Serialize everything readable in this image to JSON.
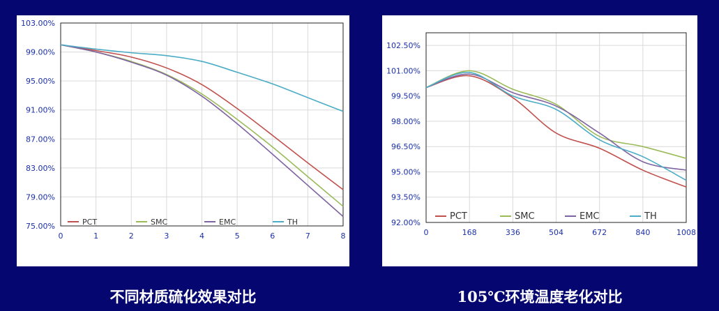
{
  "captions": {
    "left": "不同材质硫化效果对比",
    "right": "105℃环境温度老化对比"
  },
  "colors": {
    "background": "#060670",
    "PCT": "#C0504D",
    "SMC": "#9BBB59",
    "EMC": "#8064A2",
    "TH": "#4BACC6",
    "axis_text": "#1a2fa8"
  },
  "chart_data": [
    {
      "type": "line",
      "title": "",
      "xlabel": "",
      "ylabel": "",
      "x": [
        0,
        1,
        2,
        3,
        4,
        5,
        6,
        7,
        8
      ],
      "x_tick_labels": [
        "0",
        "1",
        "2",
        "3",
        "4",
        "5",
        "6",
        "7",
        "8"
      ],
      "xlim": [
        0,
        8
      ],
      "ylim": [
        75,
        103
      ],
      "y_ticks": [
        75,
        79,
        83,
        87,
        91,
        95,
        99,
        103
      ],
      "y_tick_labels": [
        "75.00%",
        "79.00%",
        "83.00%",
        "87.00%",
        "91.00%",
        "95.00%",
        "99.00%",
        "103.00%"
      ],
      "grid": true,
      "legend": "bottom",
      "series": [
        {
          "name": "PCT",
          "values": [
            100,
            99.2,
            98.3,
            96.8,
            94.5,
            91.2,
            87.5,
            83.7,
            80.0
          ]
        },
        {
          "name": "SMC",
          "values": [
            100,
            99.0,
            97.7,
            95.9,
            93.2,
            89.7,
            85.9,
            81.8,
            77.7
          ]
        },
        {
          "name": "EMC",
          "values": [
            100,
            99.0,
            97.6,
            95.8,
            92.9,
            89.1,
            84.9,
            80.6,
            76.3
          ]
        },
        {
          "name": "TH",
          "values": [
            100,
            99.4,
            98.9,
            98.5,
            97.7,
            96.2,
            94.6,
            92.7,
            90.8
          ]
        }
      ]
    },
    {
      "type": "line",
      "title": "",
      "xlabel": "",
      "ylabel": "",
      "x": [
        0,
        168,
        336,
        504,
        672,
        840,
        1008
      ],
      "x_tick_labels": [
        "0",
        "168",
        "336",
        "504",
        "672",
        "840",
        "1008"
      ],
      "xlim": [
        0,
        1008
      ],
      "ylim": [
        92,
        103.25
      ],
      "y_ticks": [
        92,
        93.5,
        95,
        96.5,
        98,
        99.5,
        101,
        102.5
      ],
      "y_tick_labels": [
        "92.00%",
        "93.50%",
        "95.00%",
        "96.50%",
        "98.00%",
        "99.50%",
        "101.00%",
        "102.50%"
      ],
      "grid": true,
      "legend": "bottom",
      "series": [
        {
          "name": "PCT",
          "values": [
            100.0,
            100.7,
            99.4,
            97.3,
            96.4,
            95.1,
            94.1
          ]
        },
        {
          "name": "SMC",
          "values": [
            100.0,
            101.0,
            99.9,
            99.0,
            97.1,
            96.5,
            95.8
          ]
        },
        {
          "name": "EMC",
          "values": [
            100.0,
            100.8,
            99.7,
            98.9,
            97.3,
            95.6,
            95.1
          ]
        },
        {
          "name": "TH",
          "values": [
            100.0,
            100.9,
            99.5,
            98.7,
            96.9,
            95.9,
            94.5
          ]
        }
      ]
    }
  ]
}
